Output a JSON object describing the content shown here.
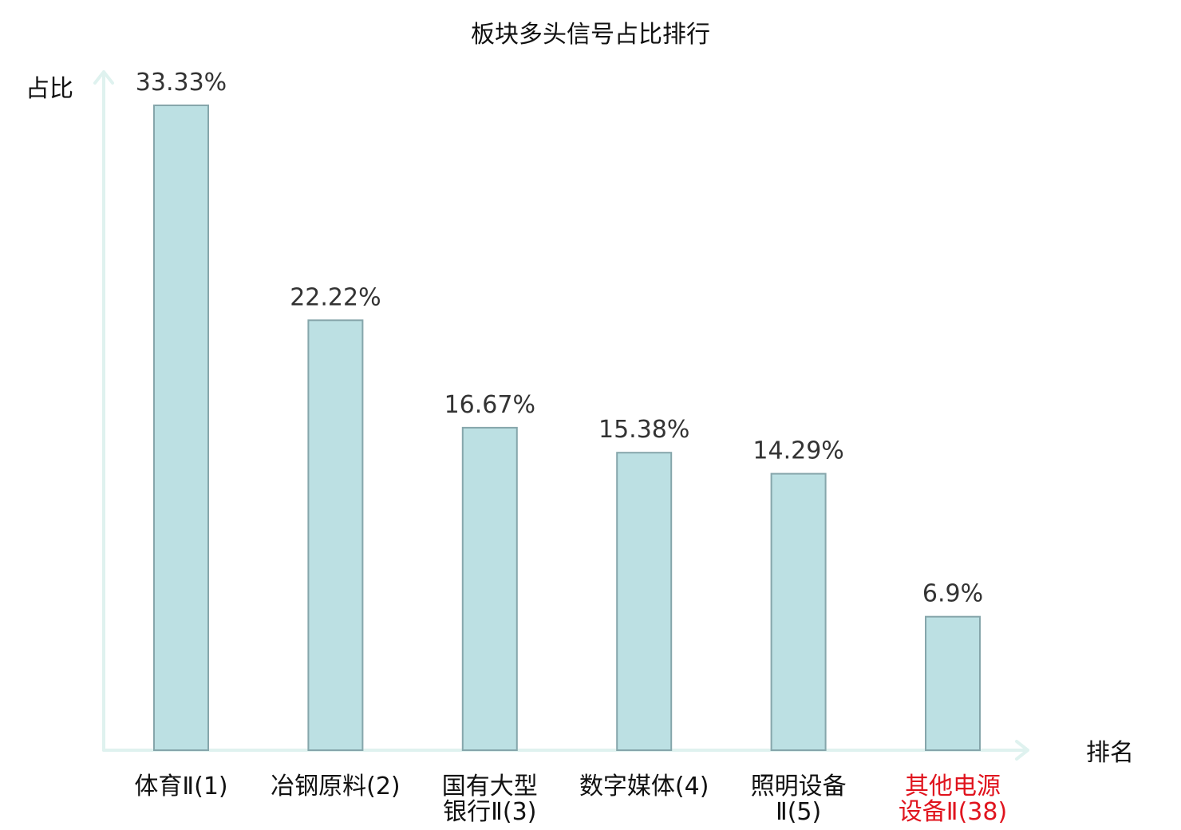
{
  "chart_data": {
    "type": "bar",
    "title": "板块多头信号占比排行",
    "ylabel": "占比",
    "xlabel": "排名",
    "ylim": [
      0,
      35
    ],
    "grid": false,
    "categories": [
      [
        "体育Ⅱ(1)"
      ],
      [
        "冶钢原料(2)"
      ],
      [
        "国有大型",
        "银行Ⅱ(3)"
      ],
      [
        "数字媒体(4)"
      ],
      [
        "照明设备",
        "Ⅱ(5)"
      ],
      [
        "其他电源",
        "设备Ⅱ(38)"
      ]
    ],
    "values": [
      33.33,
      22.22,
      16.67,
      15.38,
      14.29,
      6.9
    ],
    "value_labels": [
      "33.33%",
      "22.22%",
      "16.67%",
      "15.38%",
      "14.29%",
      "6.9%"
    ],
    "highlight_index": 5,
    "colors": {
      "bar_fill": "#bce0e3",
      "bar_stroke": "#86a6ab",
      "axis": "#dff2ef",
      "highlight_text": "#e0141e"
    }
  }
}
